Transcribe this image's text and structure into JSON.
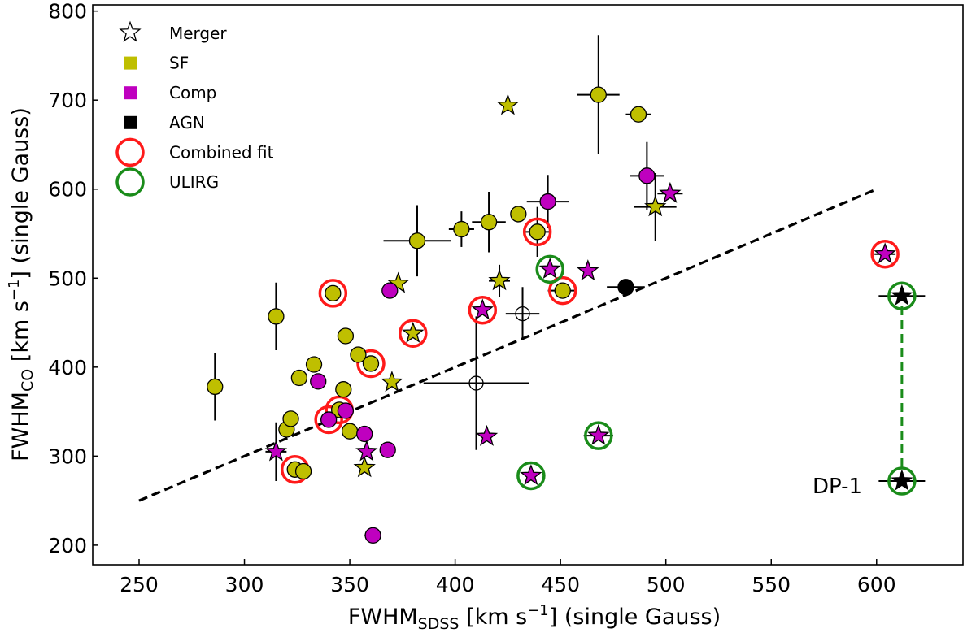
{
  "chart_data": {
    "type": "scatter",
    "xlabel_main": "FWHM",
    "xlabel_sub": "SDSS",
    "xlabel_rest": " [km s",
    "xlabel_exp": "−1",
    "xlabel_tail": "] (single Gauss)",
    "ylabel_main": "FWHM",
    "ylabel_sub": "CO",
    "ylabel_rest": " [km s",
    "ylabel_exp": "−1",
    "ylabel_tail": "] (single Gauss)",
    "xlim": [
      228,
      641
    ],
    "ylim": [
      178,
      807
    ],
    "xticks": [
      250,
      300,
      350,
      400,
      450,
      500,
      550,
      600
    ],
    "yticks": [
      200,
      300,
      400,
      500,
      600,
      700,
      800
    ],
    "colors": {
      "SF": "#bfbf00",
      "Comp": "#bf00bf",
      "AGN": "#000000",
      "combined": "#ff1a1a",
      "ulirg": "#1a8c1a",
      "line": "#000000",
      "dp1_line": "#1a8c1a"
    },
    "legend": {
      "position": "top-left",
      "entries": [
        {
          "label": "Merger",
          "kind": "star-open"
        },
        {
          "label": "SF",
          "kind": "square",
          "cls": "SF"
        },
        {
          "label": "Comp",
          "kind": "square",
          "cls": "Comp"
        },
        {
          "label": "AGN",
          "kind": "square",
          "cls": "AGN"
        },
        {
          "label": "Combined fit",
          "kind": "ring",
          "cls": "combined"
        },
        {
          "label": "ULIRG",
          "kind": "ring",
          "cls": "ulirg"
        }
      ]
    },
    "reference_line": {
      "x": [
        250,
        600
      ],
      "y": [
        250,
        600
      ],
      "style": "dashed"
    },
    "dp1_connector": {
      "x": 612,
      "y": [
        272,
        480
      ],
      "style": "dashed"
    },
    "annotation": {
      "text": "DP-1",
      "x": 612,
      "y": 272
    },
    "points": [
      {
        "x": 286,
        "y": 378,
        "cls": "SF",
        "m": "circle",
        "xe": 3,
        "ye": 38
      },
      {
        "x": 315,
        "y": 457,
        "cls": "SF",
        "m": "circle",
        "xe": 0,
        "ye": 38
      },
      {
        "x": 342,
        "y": 483,
        "cls": "SF",
        "m": "circle",
        "xe": 0,
        "ye": 0,
        "ring": "combined"
      },
      {
        "x": 320,
        "y": 330,
        "cls": "SF",
        "m": "circle",
        "xe": 0,
        "ye": 0
      },
      {
        "x": 322,
        "y": 342,
        "cls": "SF",
        "m": "circle",
        "xe": 0,
        "ye": 0
      },
      {
        "x": 326,
        "y": 388,
        "cls": "SF",
        "m": "circle",
        "xe": 0,
        "ye": 0
      },
      {
        "x": 333,
        "y": 403,
        "cls": "SF",
        "m": "circle",
        "xe": 0,
        "ye": 0
      },
      {
        "x": 324,
        "y": 285,
        "cls": "SF",
        "m": "circle",
        "xe": 0,
        "ye": 0,
        "ring": "combined"
      },
      {
        "x": 328,
        "y": 283,
        "cls": "SF",
        "m": "circle",
        "xe": 0,
        "ye": 0
      },
      {
        "x": 348,
        "y": 435,
        "cls": "SF",
        "m": "circle",
        "xe": 0,
        "ye": 0
      },
      {
        "x": 347,
        "y": 375,
        "cls": "SF",
        "m": "circle",
        "xe": 0,
        "ye": 0
      },
      {
        "x": 350,
        "y": 328,
        "cls": "SF",
        "m": "circle",
        "xe": 0,
        "ye": 0
      },
      {
        "x": 354,
        "y": 414,
        "cls": "SF",
        "m": "circle",
        "xe": 0,
        "ye": 0
      },
      {
        "x": 360,
        "y": 404,
        "cls": "SF",
        "m": "circle",
        "xe": 0,
        "ye": 0,
        "ring": "combined"
      },
      {
        "x": 345,
        "y": 352,
        "cls": "SF",
        "m": "circle",
        "xe": 0,
        "ye": 0,
        "ring": "combined"
      },
      {
        "x": 382,
        "y": 542,
        "cls": "SF",
        "m": "circle",
        "xe": 16,
        "ye": 40
      },
      {
        "x": 403,
        "y": 555,
        "cls": "SF",
        "m": "circle",
        "xe": 6,
        "ye": 20
      },
      {
        "x": 416,
        "y": 563,
        "cls": "SF",
        "m": "circle",
        "xe": 8,
        "ye": 34
      },
      {
        "x": 430,
        "y": 572,
        "cls": "SF",
        "m": "circle",
        "xe": 0,
        "ye": 0
      },
      {
        "x": 439,
        "y": 552,
        "cls": "SF",
        "m": "circle",
        "xe": 6,
        "ye": 28,
        "ring": "combined"
      },
      {
        "x": 451,
        "y": 486,
        "cls": "SF",
        "m": "circle",
        "xe": 7,
        "ye": 0,
        "ring": "combined"
      },
      {
        "x": 468,
        "y": 706,
        "cls": "SF",
        "m": "circle",
        "xe": 10,
        "ye": 67
      },
      {
        "x": 487,
        "y": 684,
        "cls": "SF",
        "m": "circle",
        "xe": 6,
        "ye": 0
      },
      {
        "x": 373,
        "y": 494,
        "cls": "SF",
        "m": "star",
        "xe": 0,
        "ye": 0
      },
      {
        "x": 380,
        "y": 438,
        "cls": "SF",
        "m": "star",
        "xe": 0,
        "ye": 0,
        "ring": "combined"
      },
      {
        "x": 370,
        "y": 383,
        "cls": "SF",
        "m": "star",
        "xe": 0,
        "ye": 0
      },
      {
        "x": 357,
        "y": 287,
        "cls": "SF",
        "m": "star",
        "xe": 0,
        "ye": 0
      },
      {
        "x": 421,
        "y": 497,
        "cls": "SF",
        "m": "star",
        "xe": 5,
        "ye": 18
      },
      {
        "x": 425,
        "y": 694,
        "cls": "SF",
        "m": "star",
        "xe": 0,
        "ye": 0
      },
      {
        "x": 495,
        "y": 580,
        "cls": "SF",
        "m": "star",
        "xe": 10,
        "ye": 38
      },
      {
        "x": 369,
        "y": 486,
        "cls": "Comp",
        "m": "circle",
        "xe": 0,
        "ye": 0
      },
      {
        "x": 444,
        "y": 586,
        "cls": "Comp",
        "m": "circle",
        "xe": 10,
        "ye": 30
      },
      {
        "x": 491,
        "y": 615,
        "cls": "Comp",
        "m": "circle",
        "xe": 8,
        "ye": 38
      },
      {
        "x": 335,
        "y": 384,
        "cls": "Comp",
        "m": "circle",
        "xe": 0,
        "ye": 0
      },
      {
        "x": 348,
        "y": 351,
        "cls": "Comp",
        "m": "circle",
        "xe": 0,
        "ye": 0
      },
      {
        "x": 340,
        "y": 341,
        "cls": "Comp",
        "m": "circle",
        "xe": 0,
        "ye": 0,
        "ring": "combined"
      },
      {
        "x": 357,
        "y": 325,
        "cls": "Comp",
        "m": "circle",
        "xe": 0,
        "ye": 0
      },
      {
        "x": 368,
        "y": 307,
        "cls": "Comp",
        "m": "circle",
        "xe": 0,
        "ye": 0
      },
      {
        "x": 361,
        "y": 211,
        "cls": "Comp",
        "m": "circle",
        "xe": 4,
        "ye": 0
      },
      {
        "x": 315,
        "y": 305,
        "cls": "Comp",
        "m": "star",
        "xe": 5,
        "ye": 33
      },
      {
        "x": 358,
        "y": 305,
        "cls": "Comp",
        "m": "star",
        "xe": 0,
        "ye": 0
      },
      {
        "x": 413,
        "y": 464,
        "cls": "Comp",
        "m": "star",
        "xe": 0,
        "ye": 0,
        "ring": "combined"
      },
      {
        "x": 445,
        "y": 510,
        "cls": "Comp",
        "m": "star",
        "xe": 0,
        "ye": 0,
        "ring": "ulirg"
      },
      {
        "x": 463,
        "y": 508,
        "cls": "Comp",
        "m": "star",
        "xe": 0,
        "ye": 0
      },
      {
        "x": 502,
        "y": 595,
        "cls": "Comp",
        "m": "star",
        "xe": 6,
        "ye": 0
      },
      {
        "x": 415,
        "y": 322,
        "cls": "Comp",
        "m": "star",
        "xe": 0,
        "ye": 0
      },
      {
        "x": 468,
        "y": 323,
        "cls": "Comp",
        "m": "star",
        "xe": 7,
        "ye": 0,
        "ring": "ulirg"
      },
      {
        "x": 436,
        "y": 278,
        "cls": "Comp",
        "m": "star",
        "xe": 0,
        "ye": 0,
        "ring": "ulirg"
      },
      {
        "x": 604,
        "y": 527,
        "cls": "Comp",
        "m": "star",
        "xe": 5,
        "ye": 0,
        "ring": "combined"
      },
      {
        "x": 481,
        "y": 490,
        "cls": "AGN",
        "m": "circle",
        "xe": 9,
        "ye": 0
      },
      {
        "x": 612,
        "y": 480,
        "cls": "AGN",
        "m": "star",
        "xe": 11,
        "ye": 0,
        "ring": "ulirg"
      },
      {
        "x": 612,
        "y": 272,
        "cls": "AGN",
        "m": "star",
        "xe": 11,
        "ye": 0,
        "ring": "ulirg"
      },
      {
        "x": 432,
        "y": 460,
        "cls": "open",
        "m": "circle",
        "xe": 8,
        "ye": 30
      },
      {
        "x": 410,
        "y": 382,
        "cls": "open",
        "m": "circle",
        "xe": 25,
        "ye": 75
      }
    ]
  }
}
